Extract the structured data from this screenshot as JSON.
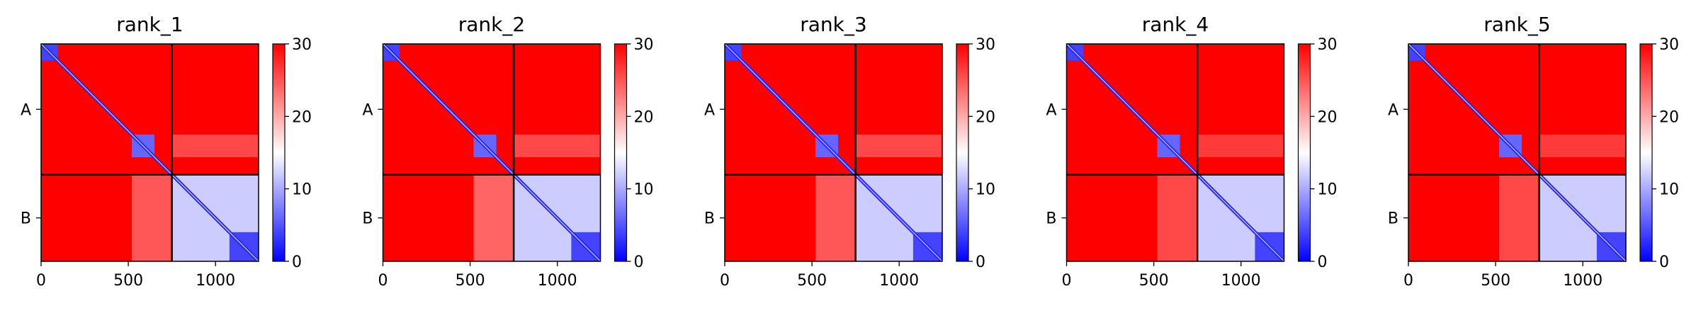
{
  "chart_data": [
    {
      "type": "heatmap",
      "title": "rank_1",
      "xlim": [
        0,
        1247
      ],
      "ylim": [
        1247,
        0
      ],
      "x_ticks": [
        0,
        500,
        1000
      ],
      "y_tick_labels": [
        {
          "label": "A",
          "value": 375
        },
        {
          "label": "B",
          "value": 998
        }
      ],
      "chain_boundary": 750,
      "colorbar": {
        "range": [
          0,
          30
        ],
        "ticks": [
          0,
          10,
          20,
          30
        ],
        "colormap": "bwr"
      },
      "blocks": [
        {
          "start": 0,
          "end": 95,
          "value": 4
        },
        {
          "start": 520,
          "end": 650,
          "value": 6
        },
        {
          "start": 750,
          "end": 1247,
          "value": 12
        },
        {
          "start": 1080,
          "end": 1247,
          "value": 4
        }
      ],
      "inter_regions": [
        {
          "x": [
            520,
            750
          ],
          "y": [
            750,
            1247
          ],
          "value": 24
        },
        {
          "x": [
            750,
            1247
          ],
          "y": [
            520,
            650
          ],
          "value": 25
        }
      ],
      "diagonal_value": 2
    },
    {
      "type": "heatmap",
      "title": "rank_2",
      "xlim": [
        0,
        1247
      ],
      "ylim": [
        1247,
        0
      ],
      "x_ticks": [
        0,
        500,
        1000
      ],
      "y_tick_labels": [
        {
          "label": "A",
          "value": 375
        },
        {
          "label": "B",
          "value": 998
        }
      ],
      "chain_boundary": 750,
      "colorbar": {
        "range": [
          0,
          30
        ],
        "ticks": [
          0,
          10,
          20,
          30
        ],
        "colormap": "bwr"
      },
      "blocks": [
        {
          "start": 0,
          "end": 95,
          "value": 4
        },
        {
          "start": 520,
          "end": 650,
          "value": 6
        },
        {
          "start": 750,
          "end": 1247,
          "value": 12
        },
        {
          "start": 1080,
          "end": 1247,
          "value": 4
        }
      ],
      "inter_regions": [
        {
          "x": [
            520,
            750
          ],
          "y": [
            750,
            1247
          ],
          "value": 23
        },
        {
          "x": [
            750,
            1247
          ],
          "y": [
            520,
            650
          ],
          "value": 25
        }
      ],
      "diagonal_value": 2
    },
    {
      "type": "heatmap",
      "title": "rank_3",
      "xlim": [
        0,
        1247
      ],
      "ylim": [
        1247,
        0
      ],
      "x_ticks": [
        0,
        500,
        1000
      ],
      "y_tick_labels": [
        {
          "label": "A",
          "value": 375
        },
        {
          "label": "B",
          "value": 998
        }
      ],
      "chain_boundary": 750,
      "colorbar": {
        "range": [
          0,
          30
        ],
        "ticks": [
          0,
          10,
          20,
          30
        ],
        "colormap": "bwr"
      },
      "blocks": [
        {
          "start": 0,
          "end": 95,
          "value": 4
        },
        {
          "start": 520,
          "end": 650,
          "value": 6
        },
        {
          "start": 750,
          "end": 1247,
          "value": 12
        },
        {
          "start": 1080,
          "end": 1247,
          "value": 4
        }
      ],
      "inter_regions": [
        {
          "x": [
            520,
            750
          ],
          "y": [
            750,
            1247
          ],
          "value": 24
        },
        {
          "x": [
            750,
            1247
          ],
          "y": [
            520,
            650
          ],
          "value": 25
        }
      ],
      "diagonal_value": 2
    },
    {
      "type": "heatmap",
      "title": "rank_4",
      "xlim": [
        0,
        1247
      ],
      "ylim": [
        1247,
        0
      ],
      "x_ticks": [
        0,
        500,
        1000
      ],
      "y_tick_labels": [
        {
          "label": "A",
          "value": 375
        },
        {
          "label": "B",
          "value": 998
        }
      ],
      "chain_boundary": 750,
      "colorbar": {
        "range": [
          0,
          30
        ],
        "ticks": [
          0,
          10,
          20,
          30
        ],
        "colormap": "bwr"
      },
      "blocks": [
        {
          "start": 0,
          "end": 95,
          "value": 4
        },
        {
          "start": 520,
          "end": 650,
          "value": 6
        },
        {
          "start": 750,
          "end": 1247,
          "value": 12
        },
        {
          "start": 1080,
          "end": 1247,
          "value": 4
        }
      ],
      "inter_regions": [
        {
          "x": [
            520,
            750
          ],
          "y": [
            750,
            1247
          ],
          "value": 25
        },
        {
          "x": [
            750,
            1247
          ],
          "y": [
            520,
            650
          ],
          "value": 26
        }
      ],
      "diagonal_value": 2
    },
    {
      "type": "heatmap",
      "title": "rank_5",
      "xlim": [
        0,
        1247
      ],
      "ylim": [
        1247,
        0
      ],
      "x_ticks": [
        0,
        500,
        1000
      ],
      "y_tick_labels": [
        {
          "label": "A",
          "value": 375
        },
        {
          "label": "B",
          "value": 998
        }
      ],
      "chain_boundary": 750,
      "colorbar": {
        "range": [
          0,
          30
        ],
        "ticks": [
          0,
          10,
          20,
          30
        ],
        "colormap": "bwr"
      },
      "blocks": [
        {
          "start": 0,
          "end": 95,
          "value": 4
        },
        {
          "start": 520,
          "end": 650,
          "value": 6
        },
        {
          "start": 750,
          "end": 1247,
          "value": 12
        },
        {
          "start": 1080,
          "end": 1247,
          "value": 4
        }
      ],
      "inter_regions": [
        {
          "x": [
            520,
            750
          ],
          "y": [
            750,
            1247
          ],
          "value": 25
        },
        {
          "x": [
            750,
            1247
          ],
          "y": [
            520,
            650
          ],
          "value": 26
        }
      ],
      "diagonal_value": 2
    }
  ]
}
